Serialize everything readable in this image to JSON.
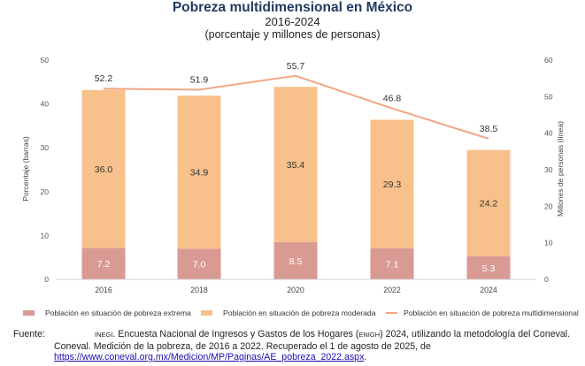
{
  "title": "Pobreza multidimensional en México",
  "subtitle": "2016-2024",
  "subtitle2": "(porcentaje y millones de personas)",
  "chart_data": {
    "type": "bar",
    "categories": [
      "2016",
      "2018",
      "2020",
      "2022",
      "2024"
    ],
    "series": [
      {
        "name": "Población en situación de pobreza extrema",
        "kind": "bar",
        "axis": "left",
        "values": [
          7.2,
          7.0,
          8.5,
          7.1,
          5.3
        ],
        "color": "#d99a94"
      },
      {
        "name": "Población en situación de pobreza moderada",
        "kind": "bar",
        "axis": "left",
        "values": [
          36.0,
          34.9,
          35.4,
          29.3,
          24.2
        ],
        "color": "#f8c08a"
      },
      {
        "name": "Población en situación de pobreza multidimensional",
        "kind": "line",
        "axis": "right",
        "values": [
          52.2,
          51.9,
          55.7,
          46.8,
          38.5
        ],
        "color": "#f2a586"
      }
    ],
    "bar_labels": {
      "extreme": [
        "7.2",
        "7.0",
        "8.5",
        "7.1",
        "5.3"
      ],
      "moderate": [
        "36.0",
        "34.9",
        "35.4",
        "29.3",
        "24.2"
      ],
      "line": [
        "52.2",
        "51.9",
        "55.7",
        "46.8",
        "38.5"
      ]
    },
    "ylabel_left": "Porcentaje (barras)",
    "ylabel_right": "Millones de personas (línea)",
    "ylim_left": [
      0,
      50
    ],
    "ylim_right": [
      0,
      60
    ],
    "yticks_left": [
      "0",
      "10",
      "20",
      "30",
      "40",
      "50"
    ],
    "yticks_right": [
      "0",
      "10",
      "20",
      "30",
      "40",
      "50",
      "60"
    ],
    "stacked": true,
    "grid": false,
    "legend_position": "bottom"
  },
  "source": {
    "label": "Fuente:",
    "inegi": "INEGI",
    "text1": ". Encuesta Nacional de Ingresos y Gastos de los Hogares (",
    "enigh": "ENIGH",
    "text2": ") 2024, utilizando la metodología del Coneval. Coneval. Medición de la pobreza, de 2016 a 2022. Recuperado el 1 de agosto de 2025, de",
    "url": "https://www.coneval.org.mx/Medicion/MP/Paginas/AE_pobreza_2022.aspx",
    "end": "."
  }
}
